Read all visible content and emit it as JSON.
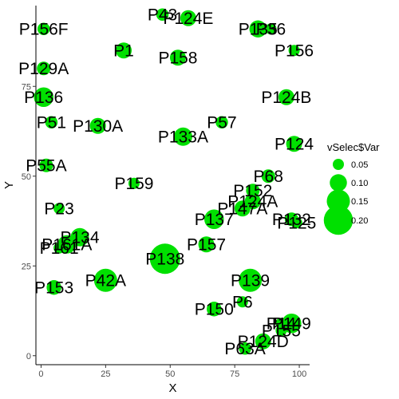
{
  "chart_data": {
    "type": "scatter",
    "xlabel": "X",
    "ylabel": "Y",
    "xlim": [
      -2,
      104
    ],
    "ylim": [
      -2.5,
      97.5
    ],
    "x_ticks": [
      0,
      25,
      50,
      75,
      100
    ],
    "y_ticks": [
      0,
      25,
      50,
      75
    ],
    "grid": false,
    "legend": {
      "title": "vSelec$Var",
      "placement": "right",
      "entries": [
        {
          "label": "0.05",
          "value": 0.05
        },
        {
          "label": "0.10",
          "value": 0.1
        },
        {
          "label": "0.15",
          "value": 0.15
        },
        {
          "label": "0.20",
          "value": 0.2
        }
      ]
    },
    "point_color": "#00e000",
    "points": [
      {
        "label": "P156F",
        "x": 1,
        "y": 91,
        "var": 0.06
      },
      {
        "label": "P43",
        "x": 47,
        "y": 95,
        "var": 0.06
      },
      {
        "label": "P124E",
        "x": 57,
        "y": 94,
        "var": 0.09
      },
      {
        "label": "P135",
        "x": 84,
        "y": 91,
        "var": 0.1
      },
      {
        "label": "P36",
        "x": 89,
        "y": 91,
        "var": 0.05
      },
      {
        "label": "P156",
        "x": 98,
        "y": 85,
        "var": 0.05
      },
      {
        "label": "P1",
        "x": 32,
        "y": 85,
        "var": 0.09
      },
      {
        "label": "P158",
        "x": 53,
        "y": 83,
        "var": 0.09
      },
      {
        "label": "P129A",
        "x": 1,
        "y": 80,
        "var": 0.07
      },
      {
        "label": "P136",
        "x": 1,
        "y": 72,
        "var": 0.12
      },
      {
        "label": "P124B",
        "x": 95,
        "y": 72,
        "var": 0.09
      },
      {
        "label": "P51",
        "x": 4,
        "y": 65,
        "var": 0.06
      },
      {
        "label": "P130A",
        "x": 22,
        "y": 64,
        "var": 0.09
      },
      {
        "label": "P57",
        "x": 70,
        "y": 65,
        "var": 0.06
      },
      {
        "label": "P133A",
        "x": 55,
        "y": 61,
        "var": 0.11
      },
      {
        "label": "P124",
        "x": 98,
        "y": 59,
        "var": 0.09
      },
      {
        "label": "P55A",
        "x": 2,
        "y": 53,
        "var": 0.07
      },
      {
        "label": "P68",
        "x": 88,
        "y": 50,
        "var": 0.07
      },
      {
        "label": "P159",
        "x": 36,
        "y": 48,
        "var": 0.05
      },
      {
        "label": "P152",
        "x": 82,
        "y": 46,
        "var": 0.07
      },
      {
        "label": "P124A",
        "x": 82,
        "y": 43,
        "var": 0.09
      },
      {
        "label": "P147A",
        "x": 78,
        "y": 41,
        "var": 0.09
      },
      {
        "label": "P23",
        "x": 7,
        "y": 41,
        "var": 0.05
      },
      {
        "label": "P137",
        "x": 67,
        "y": 38,
        "var": 0.12
      },
      {
        "label": "P132",
        "x": 97,
        "y": 38,
        "var": 0.07
      },
      {
        "label": "P125",
        "x": 99,
        "y": 37,
        "var": 0.05
      },
      {
        "label": "P134",
        "x": 15,
        "y": 33,
        "var": 0.11
      },
      {
        "label": "P161A",
        "x": 10,
        "y": 31,
        "var": 0.11
      },
      {
        "label": "P161",
        "x": 7,
        "y": 30,
        "var": 0.05
      },
      {
        "label": "P157",
        "x": 64,
        "y": 31,
        "var": 0.09
      },
      {
        "label": "P138",
        "x": 48,
        "y": 27,
        "var": 0.21
      },
      {
        "label": "P42A",
        "x": 25,
        "y": 21,
        "var": 0.15
      },
      {
        "label": "P153",
        "x": 5,
        "y": 19,
        "var": 0.08
      },
      {
        "label": "P139",
        "x": 81,
        "y": 21,
        "var": 0.15
      },
      {
        "label": "P150",
        "x": 67,
        "y": 13,
        "var": 0.08
      },
      {
        "label": "P6",
        "x": 78,
        "y": 15,
        "var": 0.05
      },
      {
        "label": "P149",
        "x": 97,
        "y": 9,
        "var": 0.12
      },
      {
        "label": "P14",
        "x": 93,
        "y": 9,
        "var": 0.05
      },
      {
        "label": "P155",
        "x": 93,
        "y": 7,
        "var": 0.05
      },
      {
        "label": "P124D",
        "x": 86,
        "y": 4,
        "var": 0.09
      },
      {
        "label": "P63A",
        "x": 79,
        "y": 2,
        "var": 0.06
      }
    ]
  }
}
